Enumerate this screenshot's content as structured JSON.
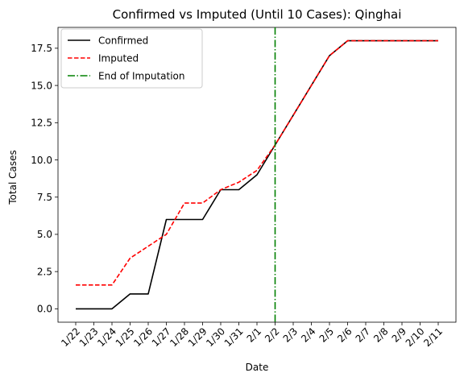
{
  "chart_data": {
    "type": "line",
    "title": "Confirmed vs Imputed (Until 10 Cases): Qinghai",
    "xlabel": "Date",
    "ylabel": "Total Cases",
    "categories": [
      "1/22",
      "1/23",
      "1/24",
      "1/25",
      "1/26",
      "1/27",
      "1/28",
      "1/29",
      "1/30",
      "1/31",
      "2/1",
      "2/2",
      "2/3",
      "2/4",
      "2/5",
      "2/6",
      "2/7",
      "2/8",
      "2/9",
      "2/10",
      "2/11"
    ],
    "y_ticks": [
      "0.0",
      "2.5",
      "5.0",
      "7.5",
      "10.0",
      "12.5",
      "15.0",
      "17.5"
    ],
    "ylim": [
      -0.9,
      18.9
    ],
    "grid": false,
    "legend_position": "top-left",
    "series": [
      {
        "name": "Confirmed",
        "style": "solid",
        "color": "#000000",
        "values": [
          0,
          0,
          0,
          1,
          1,
          6,
          6,
          6,
          8,
          8,
          9,
          11,
          13,
          15,
          17,
          18,
          18,
          18,
          18,
          18,
          18
        ]
      },
      {
        "name": "Imputed",
        "style": "dashed",
        "color": "#ff0000",
        "values": [
          1.6,
          1.6,
          1.6,
          3.4,
          4.2,
          5.0,
          7.1,
          7.1,
          8.0,
          8.5,
          9.3,
          11,
          13,
          15,
          17,
          18,
          18,
          18,
          18,
          18,
          18
        ]
      }
    ],
    "vline": {
      "name": "End of Imputation",
      "x": "2/2",
      "style": "dashdot",
      "color": "#008000"
    }
  }
}
